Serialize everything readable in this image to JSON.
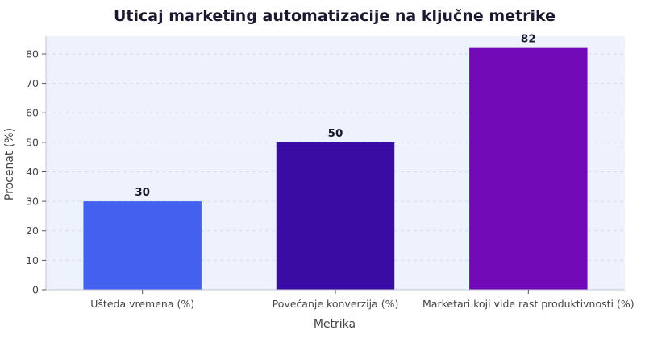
{
  "chart_data": {
    "type": "bar",
    "title": "Uticaj marketing automatizacije na ključne metrike",
    "xlabel": "Metrika",
    "ylabel": "Procenat (%)",
    "categories": [
      "Ušteda vremena (%)",
      "Povećanje konverzija (%)",
      "Marketari koji vide rast produktivnosti (%)"
    ],
    "values": [
      30,
      50,
      82
    ],
    "data_labels": [
      "30",
      "50",
      "82"
    ],
    "colors": [
      "#4361ee",
      "#3a0ca3",
      "#7209b7"
    ],
    "ylim": [
      0,
      86
    ],
    "yticks": [
      0,
      10,
      20,
      30,
      40,
      50,
      60,
      70,
      80
    ],
    "grid": true,
    "legend": "none",
    "plot_background": "#eef2fd"
  }
}
